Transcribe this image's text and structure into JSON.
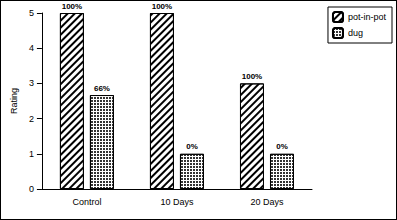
{
  "chart_data": {
    "type": "bar",
    "categories": [
      "Control",
      "10 Days",
      "20 Days"
    ],
    "series": [
      {
        "name": "pot-in-pot",
        "color": "#ffffff",
        "values": [
          5,
          5,
          3
        ],
        "annotations": [
          "100%",
          "100%",
          "100%"
        ]
      },
      {
        "name": "dug",
        "color": "#ffffff",
        "values": [
          2.67,
          1,
          1
        ],
        "annotations": [
          "66%",
          "0%",
          "0%"
        ]
      }
    ],
    "y_label": "Rating",
    "ylim": [
      0,
      5
    ],
    "yticks": [
      0,
      1,
      2,
      3,
      4,
      5
    ],
    "grid": false,
    "legend": "upper right"
  }
}
